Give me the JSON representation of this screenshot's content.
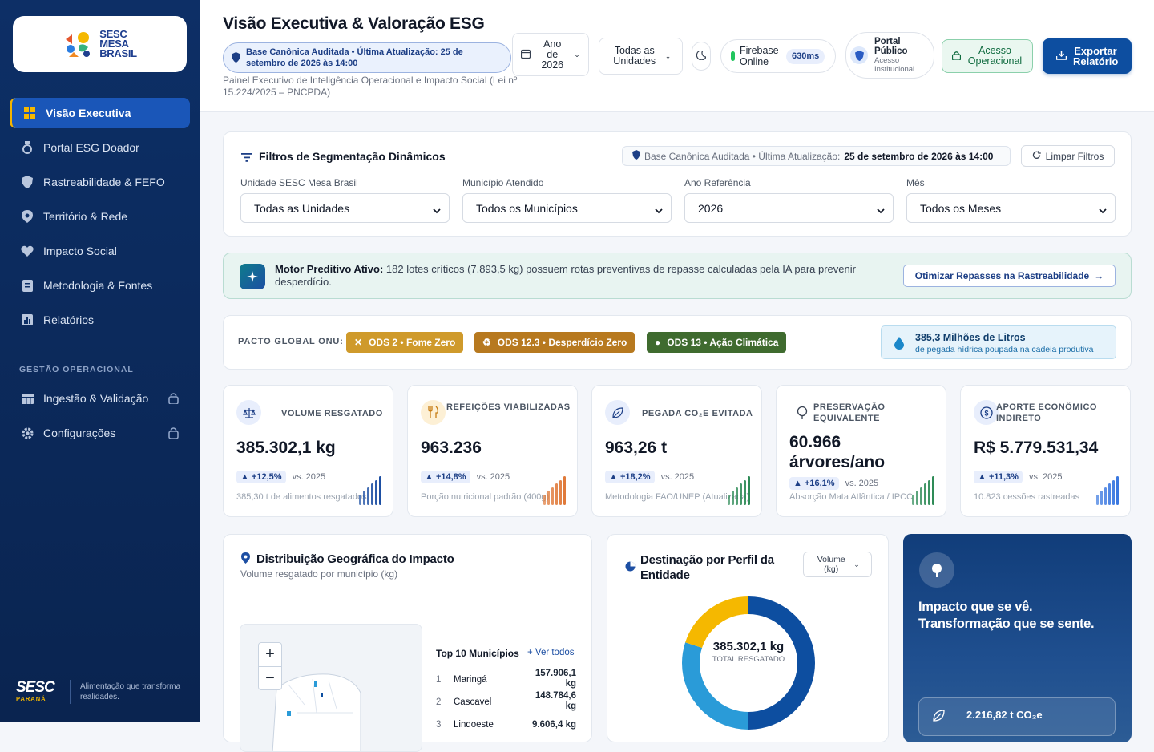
{
  "sidebar": {
    "logo": {
      "line1": "SESC",
      "line2": "MESA",
      "line3": "BRASIL"
    },
    "items": [
      {
        "label": "Visão Executiva",
        "icon": "grid-icon"
      },
      {
        "label": "Portal ESG Doador",
        "icon": "medal-icon"
      },
      {
        "label": "Rastreabilidade & FEFO",
        "icon": "shield-icon"
      },
      {
        "label": "Território & Rede",
        "icon": "map-pin-icon"
      },
      {
        "label": "Impacto Social",
        "icon": "heart-icon"
      },
      {
        "label": "Metodologia & Fontes",
        "icon": "document-icon"
      },
      {
        "label": "Relatórios",
        "icon": "bar-chart-icon"
      }
    ],
    "section_label": "GESTÃO OPERACIONAL",
    "ops_items": [
      {
        "label": "Ingestão & Validação",
        "icon": "table-icon"
      },
      {
        "label": "Configurações",
        "icon": "gear-icon"
      }
    ],
    "footer": {
      "brand": "SESC",
      "region": "PARANÁ",
      "tagline": "Alimentação que transforma realidades."
    }
  },
  "header": {
    "title": "Visão Executiva & Valoração ESG",
    "badge": "Base Canônica Auditada • Última Atualização: 25 de setembro de 2026 às 14:00",
    "subtitle": "Painel Executivo de Inteligência Operacional e Impacto Social (Lei nº 15.224/2025 – PNCPDA)",
    "year_select": "Ano de 2026",
    "units_select": "Todas as Unidades",
    "firebase_label": "Firebase Online",
    "latency": "630ms",
    "portal_title": "Portal Público",
    "portal_sub": "Acesso Institucional",
    "ops_access": "Acesso Operacional",
    "export": "Exportar Relatório"
  },
  "filters": {
    "title": "Filtros de Segmentação Dinâmicos",
    "badge_prefix": "Base Canônica Auditada • Última Atualização:",
    "badge_date": "25 de setembro de 2026 às 14:00",
    "clear": "Limpar Filtros",
    "fields": [
      {
        "label": "Unidade SESC Mesa Brasil",
        "value": "Todas as Unidades"
      },
      {
        "label": "Município Atendido",
        "value": "Todos os Municípios"
      },
      {
        "label": "Ano Referência",
        "value": "2026"
      },
      {
        "label": "Mês",
        "value": "Todos os Meses"
      }
    ]
  },
  "predictive": {
    "strong": "Motor Preditivo Ativo:",
    "text": "182 lotes críticos (7.893,5 kg) possuem rotas preventivas de repasse calculadas pela IA para prevenir desperdício.",
    "action": "Otimizar Repasses na Rastreabilidade"
  },
  "ods": {
    "label": "PACTO GLOBAL ONU:",
    "badges": [
      "ODS 2 • Fome Zero",
      "ODS 12.3 • Desperdício Zero",
      "ODS 13 • Ação Climática"
    ],
    "water_title": "385,3 Milhões de Litros",
    "water_sub": "de pegada hídrica poupada na cadeia produtiva"
  },
  "kpis": [
    {
      "label": "VOLUME RESGATADO",
      "value": "385.302,1 kg",
      "delta": "▲ +12,5%",
      "vs": "vs. 2025",
      "note": "385,30 t de alimentos resgatados",
      "color": "#1d4fa3",
      "trend": [
        0.35,
        0.5,
        0.6,
        0.75,
        0.85,
        1.0
      ]
    },
    {
      "label": "REFEIÇÕES VIABILIZADAS",
      "value": "963.236",
      "delta": "▲ +14,8%",
      "vs": "vs. 2025",
      "note": "Porção nutricional padrão (400g)",
      "color": "#e07a3a",
      "trend": [
        0.35,
        0.5,
        0.6,
        0.75,
        0.85,
        1.0
      ]
    },
    {
      "label": "PEGADA CO₂E EVITADA",
      "value": "963,26 t",
      "delta": "▲ +18,2%",
      "vs": "vs. 2025",
      "note": "Metodologia FAO/UNEP (Atualizada)",
      "color": "#2e8b57",
      "trend": [
        0.35,
        0.5,
        0.6,
        0.75,
        0.85,
        1.0
      ]
    },
    {
      "label": "PRESERVAÇÃO EQUIVALENTE",
      "value": "60.966 árvores/ano",
      "delta": "▲ +16,1%",
      "vs": "vs. 2025",
      "note": "Absorção Mata Atlântica / IPCC",
      "color": "#2e8b57",
      "trend": [
        0.35,
        0.5,
        0.6,
        0.75,
        0.85,
        1.0
      ]
    },
    {
      "label": "APORTE ECONÔMICO INDIRETO",
      "value": "R$ 5.779.531,34",
      "delta": "▲ +11,3%",
      "vs": "vs. 2025",
      "note": "10.823 cessões rastreadas",
      "color": "#3a78e0",
      "trend": [
        0.35,
        0.5,
        0.6,
        0.75,
        0.85,
        1.0
      ]
    }
  ],
  "geo": {
    "title": "Distribuição Geográfica do Impacto",
    "subtitle": "Volume resgatado por município (kg)",
    "top_title": "Top 10 Municípios",
    "see_all": "+ Ver todos",
    "rows": [
      {
        "rank": "1",
        "name": "Maringá",
        "value": "157.906,1 kg"
      },
      {
        "rank": "2",
        "name": "Cascavel",
        "value": "148.784,6 kg"
      },
      {
        "rank": "3",
        "name": "Lindoeste",
        "value": "9.606,4 kg"
      }
    ]
  },
  "destination": {
    "title": "Destinação por Perfil da Entidade",
    "select": "Volume (kg)",
    "center_value": "385.302,1 kg",
    "center_label": "TOTAL RESGATADO",
    "segments": [
      {
        "share": 0.5,
        "color": "#0d4ea0"
      },
      {
        "share": 0.3,
        "color": "#2a9bd8"
      },
      {
        "share": 0.2,
        "color": "#f5b800"
      }
    ]
  },
  "promo": {
    "title": "Impacto que se vê. Transformação que se sente.",
    "metric": "2.216,82 t CO₂e"
  }
}
